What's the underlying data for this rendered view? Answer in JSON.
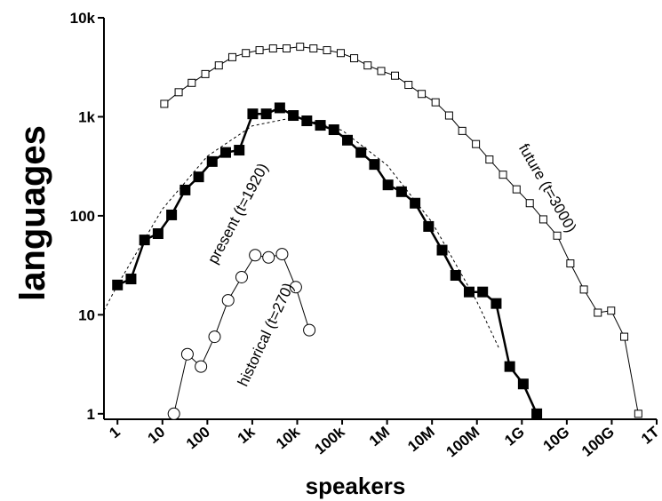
{
  "chart_data": {
    "type": "line",
    "xlabel": "speakers",
    "ylabel": "languages",
    "xscale": "log",
    "yscale": "log",
    "xlim": [
      0.5,
      1000000000000
    ],
    "ylim": [
      0.88,
      10000
    ],
    "xticks": [
      1,
      10,
      100,
      {
        "value": 1000,
        "label": "1k"
      },
      {
        "value": 10000,
        "label": "10k"
      },
      {
        "value": 100000,
        "label": "100k"
      },
      {
        "value": 1000000,
        "label": "1M"
      },
      {
        "value": 10000000,
        "label": "10M"
      },
      {
        "value": 100000000,
        "label": "100M"
      },
      {
        "value": 1000000000,
        "label": "1G"
      },
      {
        "value": 10000000000,
        "label": "10G"
      },
      {
        "value": 100000000000,
        "label": "100G"
      },
      {
        "value": 1000000000000,
        "label": "1T"
      }
    ],
    "yticks": [
      1,
      10,
      100,
      {
        "value": 1000,
        "label": "1k"
      },
      {
        "value": 10000,
        "label": "10k"
      }
    ],
    "series": [
      {
        "color": "#000000",
        "marker": "square-open",
        "line_width": 1,
        "x": [
          11,
          23,
          45,
          90,
          180,
          360,
          720,
          1450,
          2900,
          5800,
          11600,
          23000,
          46000,
          93000,
          185000,
          370000,
          740000,
          1500000,
          3000000,
          5900000,
          12000000,
          24000000,
          47000000,
          95000000,
          190000000,
          380000000,
          760000000,
          1500000000,
          3000000000,
          6100000000,
          12000000000,
          24000000000,
          49000000000,
          97000000000,
          190000000000,
          390000000000
        ],
        "values": [
          1350,
          1770,
          2200,
          2700,
          3300,
          4000,
          4400,
          4700,
          4900,
          4900,
          5100,
          4900,
          4700,
          4400,
          3900,
          3300,
          2900,
          2600,
          2100,
          1700,
          1400,
          1030,
          720,
          530,
          370,
          260,
          185,
          134,
          92,
          63,
          33,
          18,
          10.5,
          11,
          6,
          1
        ]
      },
      {
        "color": "#000000",
        "marker": "square-filled",
        "line_width": 2.5,
        "x": [
          1,
          2,
          4,
          8,
          16,
          32,
          64,
          128,
          256,
          512,
          1024,
          2048,
          4096,
          8192,
          16384,
          32768,
          65536,
          131072,
          262144,
          524288,
          1048576,
          2097152,
          4194304,
          8388608,
          16777216,
          33554432,
          67108864,
          134217728,
          268435456,
          536870912,
          1073741824,
          2147483648
        ],
        "values": [
          20,
          23,
          57,
          66,
          102,
          182,
          247,
          353,
          436,
          460,
          1070,
          1070,
          1230,
          1030,
          910,
          820,
          740,
          580,
          436,
          330,
          205,
          175,
          134,
          78,
          45,
          25,
          17,
          17,
          13,
          3,
          2,
          1
        ]
      },
      {
        "color": "#000000",
        "marker": "circle-open",
        "line_width": 1,
        "x": [
          18,
          36,
          72,
          145,
          290,
          580,
          1160,
          2300,
          4600,
          9300,
          18600
        ],
        "values": [
          1,
          4,
          3,
          6,
          14,
          24,
          40,
          38,
          41,
          19,
          7
        ]
      },
      {
        "color": "#000000",
        "marker": "none",
        "line_width": 1,
        "dash": true,
        "x": [
          0.5,
          1,
          10,
          100,
          1000,
          10000,
          100000,
          1000000,
          10000000,
          100000000,
          316000000
        ],
        "values": [
          11,
          20,
          117,
          400,
          810,
          1000,
          730,
          325,
          86,
          13.6,
          4.5
        ]
      }
    ],
    "annotations": [
      {
        "text": "future (t=3000)",
        "x": 3000000000,
        "y": 180,
        "rotation": 60
      },
      {
        "text": "present (t=1920)",
        "x": 600,
        "y": 100,
        "rotation": -62
      },
      {
        "text": "historical (t=270)",
        "x": 2500,
        "y": 6,
        "rotation": -65
      }
    ]
  }
}
